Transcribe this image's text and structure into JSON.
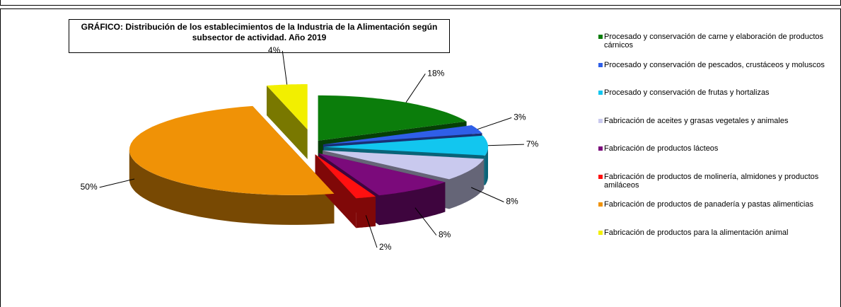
{
  "chart_data": {
    "type": "pie",
    "title": "GRÁFICO: Distribución de los establecimientos de la Industria de la Alimentación según subsector de actividad. Año 2019",
    "categories": [
      "Procesado y conservación de carne y elaboración de productos cárnicos",
      "Procesado y conservación de pescados, crustáceos y moluscos",
      "Procesado y conservación de frutas y hortalizas",
      "Fabricación de aceites y grasas vegetales y animales",
      "Fabricación de productos lácteos",
      "Fabricación de productos de molinería, almidones y productos amiláceos",
      "Fabricación de productos de panadería y pastas alimenticias",
      "Fabricación de productos para la alimentación animal"
    ],
    "values": [
      18,
      3,
      7,
      8,
      8,
      2,
      50,
      4
    ],
    "value_labels": [
      "18%",
      "3%",
      "7%",
      "8%",
      "8%",
      "2%",
      "50%",
      "4%"
    ],
    "colors": [
      "#0b7d0b",
      "#2f5fe8",
      "#12c6ef",
      "#c9c9ee",
      "#7b0a7b",
      "#ff1010",
      "#f09206",
      "#f2ef00"
    ],
    "legend": "right"
  }
}
